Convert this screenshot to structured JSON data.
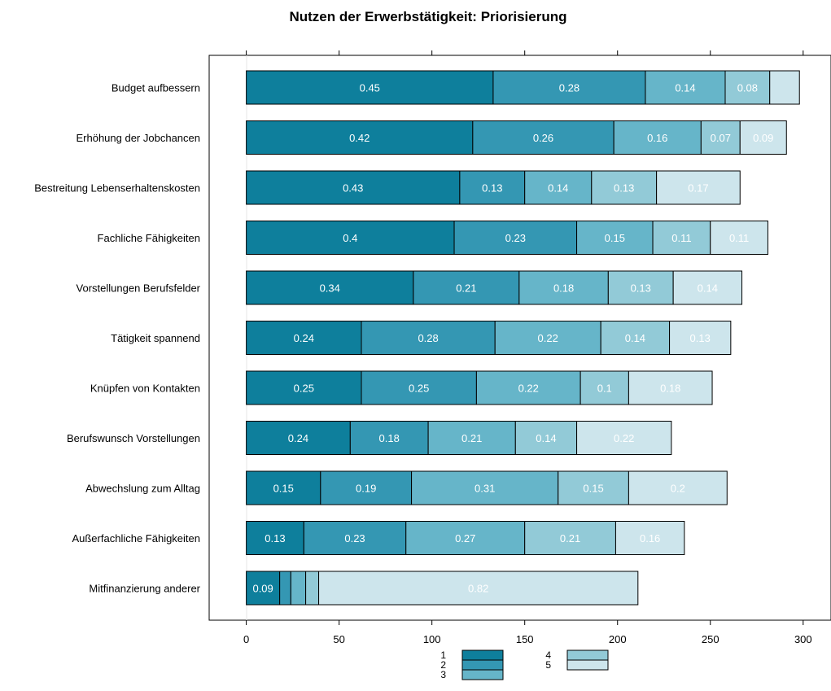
{
  "chart_data": {
    "type": "bar",
    "orientation": "horizontal",
    "stacked": true,
    "title": "Nutzen der Erwerbstätigkeit: Priorisierung",
    "xlabel": "",
    "ylabel": "",
    "xlim": [
      -20,
      315
    ],
    "xticks": [
      0,
      50,
      100,
      150,
      200,
      250,
      300
    ],
    "grid": false,
    "legend": "bottom",
    "colors": [
      "#0e7f9c",
      "#3497b3",
      "#66b5c9",
      "#92cad7",
      "#cde5ec"
    ],
    "legend_labels": [
      "1",
      "2",
      "3",
      "4",
      "5"
    ],
    "categories": [
      "Budget aufbessern",
      "Erhöhung der Jobchancen",
      "Bestreitung Lebenserhaltenskosten",
      "Fachliche Fähigkeiten",
      "Vorstellungen Berufsfelder",
      "Tätigkeit spannend",
      "Knüpfen von Kontakten",
      "Berufswunsch Vorstellungen",
      "Abwechslung zum Alltag",
      "Außerfachliche Fähigkeiten",
      "Mitfinanzierung anderer"
    ],
    "values": [
      [
        133,
        82,
        43,
        24,
        16
      ],
      [
        122,
        76,
        47,
        21,
        25
      ],
      [
        115,
        35,
        36,
        35,
        45
      ],
      [
        112,
        66,
        41,
        31,
        31
      ],
      [
        90,
        57,
        48,
        35,
        37
      ],
      [
        62,
        72,
        57,
        37,
        33
      ],
      [
        62,
        62,
        56,
        26,
        45
      ],
      [
        56,
        42,
        47,
        33,
        51
      ],
      [
        40,
        49,
        79,
        38,
        53
      ],
      [
        31,
        55,
        64,
        49,
        37
      ],
      [
        18,
        6,
        8,
        7,
        172
      ]
    ],
    "labels": [
      [
        "0.45",
        "0.28",
        "0.14",
        "0.08",
        ""
      ],
      [
        "0.42",
        "0.26",
        "0.16",
        "0.07",
        "0.09"
      ],
      [
        "0.43",
        "0.13",
        "0.14",
        "0.13",
        "0.17"
      ],
      [
        "0.4",
        "0.23",
        "0.15",
        "0.11",
        "0.11"
      ],
      [
        "0.34",
        "0.21",
        "0.18",
        "0.13",
        "0.14"
      ],
      [
        "0.24",
        "0.28",
        "0.22",
        "0.14",
        "0.13"
      ],
      [
        "0.25",
        "0.25",
        "0.22",
        "0.1",
        "0.18"
      ],
      [
        "0.24",
        "0.18",
        "0.21",
        "0.14",
        "0.22"
      ],
      [
        "0.15",
        "0.19",
        "0.31",
        "0.15",
        "0.2"
      ],
      [
        "0.13",
        "0.23",
        "0.27",
        "0.21",
        "0.16"
      ],
      [
        "0.09",
        "",
        "",
        "",
        "0.82"
      ]
    ]
  }
}
